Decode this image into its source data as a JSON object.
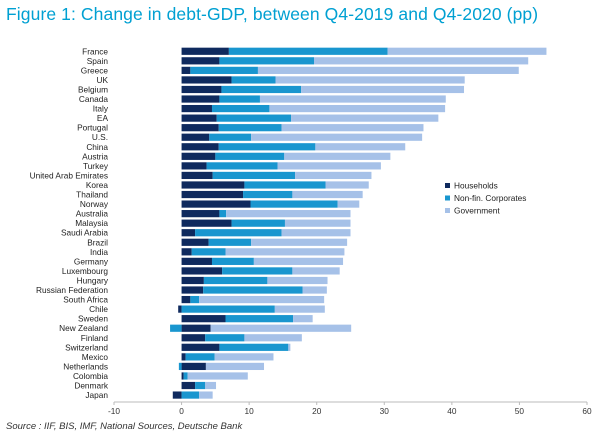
{
  "title": "Figure 1: Change in debt-GDP, between Q4-2019 and Q4-2020 (pp)",
  "source": "Source : IIF, BIS, IMF, National Sources, Deutsche Bank",
  "colors": {
    "households": "#0f2a5e",
    "nonfin": "#1996cf",
    "government": "#a6c1e8",
    "axis": "#bbbbbb"
  },
  "chart_data": {
    "type": "bar",
    "orientation": "horizontal",
    "stacked": true,
    "title": "Figure 1: Change in debt-GDP, between Q4-2019 and Q4-2020 (pp)",
    "xlabel": "",
    "ylabel": "",
    "xlim": [
      -10,
      60
    ],
    "xticks": [
      -10,
      0,
      10,
      20,
      30,
      40,
      50,
      60
    ],
    "grid": false,
    "legend_position": "right",
    "categories": [
      "France",
      "Spain",
      "Greece",
      "UK",
      "Belgium",
      "Canada",
      "Italy",
      "EA",
      "Portugal",
      "U.S.",
      "China",
      "Austria",
      "Turkey",
      "United Arab Emirates",
      "Korea",
      "Thailand",
      "Norway",
      "Australia",
      "Malaysia",
      "Saudi Arabia",
      "Brazil",
      "India",
      "Germany",
      "Luxembourg",
      "Hungary",
      "Russian Federation",
      "South Africa",
      "Chile",
      "Sweden",
      "New Zealand",
      "Finland",
      "Switzerland",
      "Mexico",
      "Netherlands",
      "Colombia",
      "Denmark",
      "Japan"
    ],
    "series": [
      {
        "name": "Households",
        "values": [
          7.0,
          5.6,
          1.3,
          7.4,
          5.9,
          5.6,
          4.5,
          5.2,
          5.5,
          4.1,
          5.5,
          5.0,
          3.7,
          4.6,
          9.3,
          9.1,
          10.2,
          5.6,
          7.4,
          2.0,
          4.0,
          1.5,
          4.5,
          6.0,
          3.3,
          3.2,
          1.3,
          -0.5,
          6.5,
          4.3,
          3.5,
          5.6,
          0.6,
          3.6,
          0.3,
          2.0,
          -1.3
        ]
      },
      {
        "name": "Non-fin. Corporates",
        "values": [
          23.5,
          14.0,
          10.0,
          6.5,
          11.8,
          6.0,
          8.5,
          11.0,
          9.3,
          6.2,
          14.3,
          10.2,
          10.5,
          12.2,
          12.0,
          7.3,
          12.9,
          1.0,
          7.9,
          12.8,
          6.3,
          5.0,
          6.2,
          10.4,
          9.4,
          14.7,
          1.3,
          13.8,
          10.0,
          -1.7,
          5.8,
          10.2,
          4.3,
          -0.4,
          0.6,
          1.5,
          2.6
        ]
      },
      {
        "name": "Government",
        "values": [
          23.5,
          31.7,
          38.6,
          28.0,
          24.1,
          27.5,
          26.0,
          21.8,
          21.0,
          25.3,
          13.3,
          15.7,
          15.3,
          11.3,
          6.4,
          10.4,
          3.2,
          18.4,
          9.7,
          10.2,
          14.2,
          17.6,
          13.2,
          7.0,
          8.9,
          3.6,
          18.5,
          7.4,
          2.9,
          20.8,
          8.5,
          0.3,
          8.7,
          8.6,
          8.9,
          1.6,
          2.0
        ]
      }
    ]
  }
}
